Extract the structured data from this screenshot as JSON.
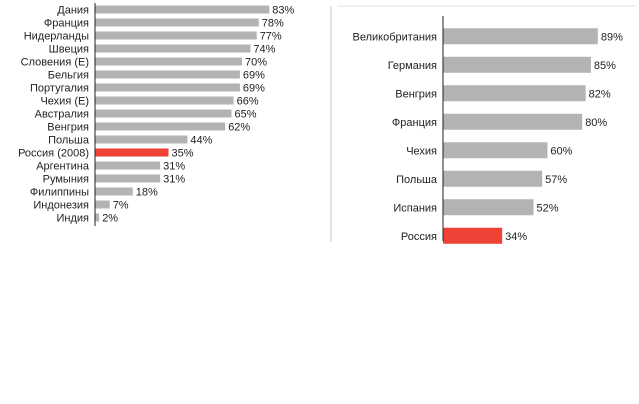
{
  "chart_data": [
    {
      "type": "bar",
      "orientation": "horizontal",
      "categories": [
        "Дания",
        "Франция",
        "Нидерланды",
        "Швеция",
        "Словения (Е)",
        "Бельгия",
        "Португалия",
        "Чехия (Е)",
        "Австралия",
        "Венгрия",
        "Польша",
        "Россия (2008)",
        "Аргентина",
        "Румыния",
        "Филиппины",
        "Индонезия",
        "Индия"
      ],
      "values": [
        83,
        78,
        77,
        74,
        70,
        69,
        69,
        66,
        65,
        62,
        44,
        35,
        31,
        31,
        18,
        7,
        2
      ],
      "value_labels": [
        "83%",
        "78%",
        "77%",
        "74%",
        "70%",
        "69%",
        "69%",
        "66%",
        "65%",
        "62%",
        "44%",
        "35%",
        "31%",
        "31%",
        "18%",
        "7%",
        "2%"
      ],
      "highlight_index": 11,
      "xlim": [
        0,
        100
      ],
      "bar_color": "#b3b3b3",
      "highlight_color": "#ef4136",
      "title": "",
      "xlabel": "",
      "ylabel": ""
    },
    {
      "type": "bar",
      "orientation": "horizontal",
      "categories": [
        "Великобритания",
        "Германия",
        "Венгрия",
        "Франция",
        "Чехия",
        "Польша",
        "Испания",
        "Россия"
      ],
      "values": [
        89,
        85,
        82,
        80,
        60,
        57,
        52,
        34
      ],
      "value_labels": [
        "89%",
        "85%",
        "82%",
        "80%",
        "60%",
        "57%",
        "52%",
        "34%"
      ],
      "highlight_index": 7,
      "xlim": [
        0,
        100
      ],
      "bar_color": "#b3b3b3",
      "highlight_color": "#ef4136",
      "title": "",
      "xlabel": "",
      "ylabel": ""
    }
  ]
}
